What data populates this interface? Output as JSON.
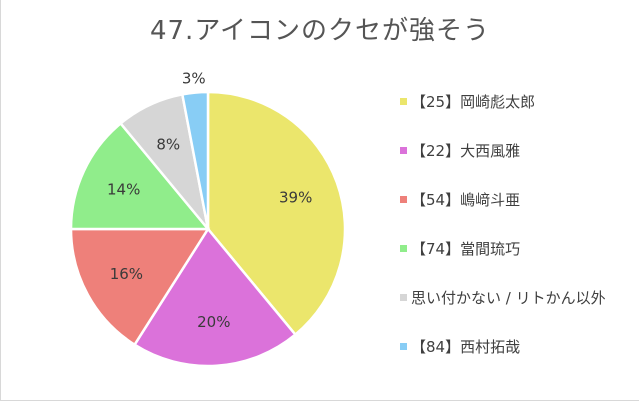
{
  "chart_data": {
    "type": "pie",
    "title": "47.アイコンのクセが強そう",
    "legend_position": "right",
    "series": [
      {
        "label": "【25】岡崎彪太郎",
        "value": 39,
        "value_label": "39%",
        "color": "#ebe66c"
      },
      {
        "label": "【22】大西風雅",
        "value": 20,
        "value_label": "20%",
        "color": "#db72da"
      },
      {
        "label": "【54】嶋﨑斗亜",
        "value": 16,
        "value_label": "16%",
        "color": "#ee807a"
      },
      {
        "label": "【74】當間琉巧",
        "value": 14,
        "value_label": "14%",
        "color": "#90ed8b"
      },
      {
        "label": "思い付かない / リトかん以外",
        "value": 8,
        "value_label": "8%",
        "color": "#d6d6d6"
      },
      {
        "label": "【84】西村拓哉",
        "value": 3,
        "value_label": "3%",
        "color": "#88cdf5"
      }
    ]
  }
}
